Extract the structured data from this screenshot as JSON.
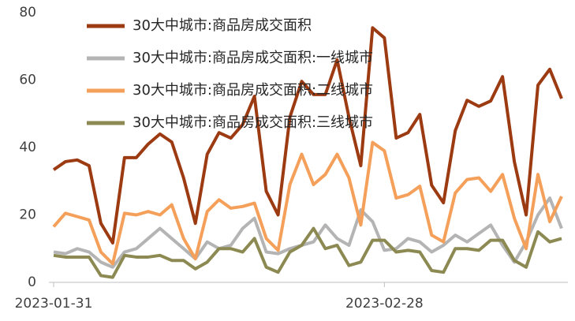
{
  "chart_data": {
    "type": "line",
    "categories": [
      "2023-01-31",
      null,
      null,
      null,
      null,
      null,
      null,
      null,
      null,
      null,
      null,
      null,
      null,
      null,
      null,
      null,
      null,
      null,
      null,
      null,
      null,
      null,
      null,
      null,
      null,
      null,
      null,
      null,
      "2023-02-28",
      null,
      null,
      null,
      null,
      null,
      null,
      null,
      null,
      null,
      null,
      null,
      null,
      null,
      null,
      null
    ],
    "series": [
      {
        "name": "30大中城市:商品房成交面积",
        "color": "#9c3a12",
        "values": [
          33.4,
          35.8,
          36.3,
          34.6,
          17.5,
          11.7,
          37,
          37,
          41,
          44,
          41.6,
          31,
          17.5,
          38,
          44.4,
          42.8,
          46.8,
          55.2,
          27,
          20,
          49,
          59.6,
          55.7,
          55.7,
          66,
          49,
          34.6,
          75.5,
          72.5,
          42.8,
          44.4,
          49.8,
          28.8,
          23.6,
          45,
          54,
          52.2,
          53.8,
          61,
          35.8,
          20,
          58.5,
          63.2,
          54.5
        ]
      },
      {
        "name": "30大中城市:商品房成交面积:一线城市",
        "color": "#b4b4b4",
        "values": [
          9,
          8.5,
          10,
          9,
          6,
          4.5,
          9,
          10,
          13,
          16,
          13,
          10,
          7,
          12,
          10,
          11,
          16,
          19,
          9,
          8.5,
          10,
          11,
          12,
          17,
          13,
          11,
          21.5,
          18,
          9.5,
          10,
          13,
          12,
          9,
          11,
          14,
          12,
          14.5,
          17,
          11,
          6,
          12,
          20,
          25,
          16
        ]
      },
      {
        "name": "30大中城市:商品房成交面积:二线城市",
        "color": "#f5a05a",
        "values": [
          16.5,
          20.5,
          19.5,
          18.5,
          9,
          5.5,
          20.5,
          20,
          21,
          20,
          23,
          13,
          7,
          21,
          24.5,
          22,
          22.5,
          23.5,
          13,
          9.5,
          29,
          38,
          29,
          32,
          38,
          31,
          17,
          41.5,
          39,
          25,
          26,
          28.5,
          14,
          12,
          26.5,
          30.5,
          31,
          27,
          32,
          19,
          10,
          32,
          18,
          25.5
        ]
      },
      {
        "name": "30大中城市:商品房成交面积:三线城市",
        "color": "#8c8a52",
        "values": [
          8,
          7.5,
          7.5,
          7.5,
          2,
          1.5,
          8,
          7.5,
          7.5,
          8,
          6.5,
          6.5,
          4,
          6,
          10,
          10,
          9,
          13,
          4.5,
          3,
          9,
          11,
          16,
          10,
          11,
          5,
          6,
          12.5,
          12.5,
          9,
          9.5,
          9,
          3.5,
          3,
          10,
          10,
          9.5,
          12.5,
          12.5,
          6.5,
          4.5,
          15,
          12,
          13
        ]
      }
    ],
    "ylim": [
      0,
      80
    ],
    "yticks": [
      0,
      20,
      40,
      60,
      80
    ],
    "grid": false,
    "legend": "top"
  }
}
